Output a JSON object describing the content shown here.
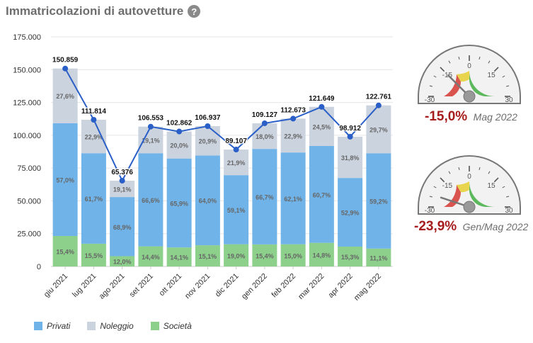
{
  "header": {
    "title": "Immatricolazioni di autovetture",
    "help_icon": "?"
  },
  "chart_data": {
    "type": "bar",
    "stacked": true,
    "categories": [
      "giu 2021",
      "lug 2021",
      "ago 2021",
      "set 2021",
      "ott 2021",
      "nov 2021",
      "dic 2021",
      "gen 2022",
      "feb 2022",
      "mar 2022",
      "apr 2022",
      "mag 2022"
    ],
    "series": [
      {
        "name": "Società",
        "color": "#8dd08b",
        "values": [
          23232,
          17331,
          7845,
          15343,
          14504,
          16147,
          16930,
          16806,
          16901,
          18004,
          15134,
          13626
        ],
        "labels": [
          "15,4%",
          "15,5%",
          "12,0%",
          "14,4%",
          "14,1%",
          "15,1%",
          "19,0%",
          "15,4%",
          "15,0%",
          "14,8%",
          "15,3%",
          "11,1%"
        ]
      },
      {
        "name": "Privati",
        "color": "#70b3e8",
        "values": [
          85990,
          68985,
          45044,
          70964,
          67786,
          68440,
          52662,
          72788,
          69970,
          73841,
          52317,
          72675
        ],
        "labels": [
          "57,0%",
          "61,7%",
          "68,9%",
          "66,6%",
          "65,9%",
          "64,0%",
          "59,1%",
          "66,7%",
          "62,1%",
          "60,7%",
          "52,9%",
          "59,2%"
        ]
      },
      {
        "name": "Noleggio",
        "color": "#cbd3df",
        "values": [
          41637,
          25498,
          12487,
          20246,
          20572,
          22350,
          19515,
          19533,
          25802,
          29804,
          31461,
          36460
        ],
        "labels": [
          "27,6%",
          "22,9%",
          "19,1%",
          "19,1%",
          "20,0%",
          "20,9%",
          "21,9%",
          "18,0%",
          "22,9%",
          "24,5%",
          "31,8%",
          "29,7%"
        ]
      }
    ],
    "line": {
      "name": "Totale",
      "color": "#2a5fc7",
      "values": [
        150859,
        111814,
        65376,
        106553,
        102862,
        106937,
        89107,
        109127,
        112673,
        121649,
        98912,
        122761
      ],
      "labels": [
        "150.859",
        "111.814",
        "65.376",
        "106.553",
        "102.862",
        "106.937",
        "89.107",
        "109.127",
        "112.673",
        "121.649",
        "98.912",
        "122.761"
      ]
    },
    "y_ticks": [
      "0",
      "25.000",
      "50.000",
      "75.000",
      "100.000",
      "125.000",
      "150.000",
      "175.000"
    ],
    "ylim": [
      0,
      175000
    ],
    "legend_position": "bottom-left"
  },
  "legend": [
    {
      "label": "Privati",
      "color": "#70b3e8"
    },
    {
      "label": "Noleggio",
      "color": "#cbd3df"
    },
    {
      "label": "Società",
      "color": "#8dd08b"
    }
  ],
  "gauges": [
    {
      "value_text": "-15,0%",
      "period": "Mag 2022",
      "value": -15.0,
      "ticks": [
        "-30",
        "-15",
        "0",
        "15",
        "30"
      ],
      "min": -30,
      "max": 30
    },
    {
      "value_text": "-23,9%",
      "period": "Gen/Mag 2022",
      "value": -23.9,
      "ticks": [
        "-30",
        "-15",
        "0",
        "15",
        "30"
      ],
      "min": -30,
      "max": 30
    }
  ]
}
